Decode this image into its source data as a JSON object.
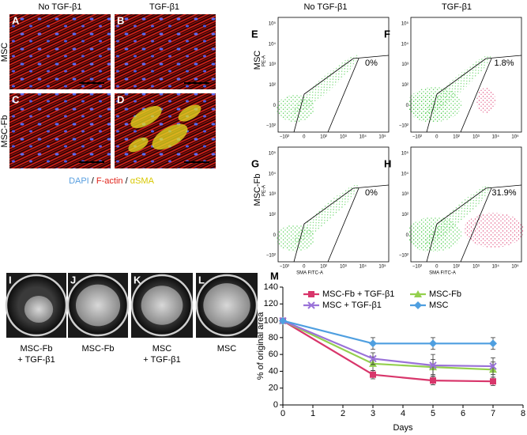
{
  "panels": {
    "letters": [
      "A",
      "B",
      "C",
      "D",
      "E",
      "F",
      "G",
      "H",
      "I",
      "J",
      "K",
      "L",
      "M"
    ]
  },
  "micrographs": {
    "col_headers": [
      "No TGF-β1",
      "TGF-β1"
    ],
    "row_labels": [
      "MSC",
      "MSC-Fb"
    ],
    "stains": [
      "DAPI",
      "F-actin",
      "αSMA"
    ],
    "separator": "/"
  },
  "flow": {
    "col_headers": [
      "No TGF-β1",
      "TGF-β1"
    ],
    "row_labels": [
      "MSC",
      "MSC-Fb"
    ],
    "y_axis_label": "PE-A",
    "x_axis_label": "SMA FITC-A",
    "gate_percentages": [
      "0%",
      "1.8%",
      "0%",
      "31.9%"
    ],
    "x_ticks": [
      "−10²",
      "0",
      "10²",
      "10³",
      "10⁴",
      "10⁵"
    ],
    "y_ticks": [
      "10⁵",
      "10⁴",
      "10³",
      "10²",
      "0",
      "−10²"
    ]
  },
  "gels": {
    "labels": [
      [
        "MSC-Fb",
        "+ TGF-β1"
      ],
      [
        "MSC-Fb"
      ],
      [
        "MSC",
        "+ TGF-β1"
      ],
      [
        "MSC"
      ]
    ]
  },
  "chart_data": {
    "type": "line",
    "x_label": "Days",
    "y_label": "% of original area",
    "x": [
      0,
      3,
      5,
      7
    ],
    "xlim": [
      0,
      8
    ],
    "xticks": [
      0,
      1,
      2,
      3,
      4,
      5,
      6,
      7,
      8
    ],
    "ylim": [
      0,
      140
    ],
    "yticks": [
      0,
      20,
      40,
      60,
      80,
      100,
      120,
      140
    ],
    "series": [
      {
        "name": "MSC-Fb + TGF-β1",
        "color": "#d8366b",
        "marker": "square",
        "values": [
          100,
          36,
          29,
          28
        ],
        "errors": [
          0,
          5,
          5,
          5
        ]
      },
      {
        "name": "MSC-Fb",
        "color": "#94d04e",
        "marker": "triangle",
        "values": [
          100,
          49,
          45,
          42
        ],
        "errors": [
          0,
          8,
          9,
          9
        ]
      },
      {
        "name": "MSC + TGF-β1",
        "color": "#9a72d8",
        "marker": "cross",
        "values": [
          100,
          55,
          47,
          46
        ],
        "errors": [
          0,
          7,
          13,
          10
        ]
      },
      {
        "name": "MSC",
        "color": "#4f9fe0",
        "marker": "diamond",
        "values": [
          100,
          73,
          73,
          73
        ],
        "errors": [
          0,
          7,
          7,
          7
        ]
      }
    ]
  }
}
